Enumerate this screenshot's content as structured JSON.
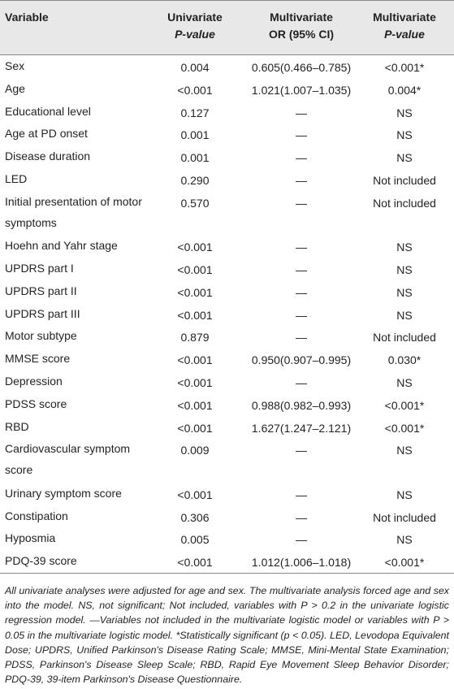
{
  "header": {
    "variable": "Variable",
    "univariate_line1": "Univariate",
    "univariate_line2": "P-value",
    "or_line1": "Multivariate",
    "or_line2": "OR (95% CI)",
    "mp_line1": "Multivariate",
    "mp_line2": "P-value"
  },
  "rows": [
    {
      "variable": "Sex",
      "univariate": "0.004",
      "or": "0.605(0.466–0.785)",
      "mp": "<0.001*"
    },
    {
      "variable": "Age",
      "univariate": "<0.001",
      "or": "1.021(1.007–1.035)",
      "mp": "0.004*"
    },
    {
      "variable": "Educational level",
      "univariate": "0.127",
      "or": "—",
      "mp": "NS"
    },
    {
      "variable": "Age at PD onset",
      "univariate": "0.001",
      "or": "—",
      "mp": "NS"
    },
    {
      "variable": "Disease duration",
      "univariate": "0.001",
      "or": "—",
      "mp": "NS"
    },
    {
      "variable": "LED",
      "univariate": "0.290",
      "or": "—",
      "mp": "Not included"
    },
    {
      "variable": "Initial presentation of motor symptoms",
      "univariate": "0.570",
      "or": "—",
      "mp": "Not included"
    },
    {
      "variable": "Hoehn and Yahr stage",
      "univariate": "<0.001",
      "or": "—",
      "mp": "NS"
    },
    {
      "variable": "UPDRS part I",
      "univariate": "<0.001",
      "or": "—",
      "mp": "NS"
    },
    {
      "variable": "UPDRS part II",
      "univariate": "<0.001",
      "or": "—",
      "mp": "NS"
    },
    {
      "variable": "UPDRS part III",
      "univariate": "<0.001",
      "or": "—",
      "mp": "NS"
    },
    {
      "variable": "Motor subtype",
      "univariate": "0.879",
      "or": "—",
      "mp": "Not included"
    },
    {
      "variable": "MMSE score",
      "univariate": "<0.001",
      "or": "0.950(0.907–0.995)",
      "mp": "0.030*"
    },
    {
      "variable": "Depression",
      "univariate": "<0.001",
      "or": "—",
      "mp": "NS"
    },
    {
      "variable": "PDSS score",
      "univariate": "<0.001",
      "or": "0.988(0.982–0.993)",
      "mp": "<0.001*"
    },
    {
      "variable": "RBD",
      "univariate": "<0.001",
      "or": "1.627(1.247–2.121)",
      "mp": "<0.001*"
    },
    {
      "variable": "Cardiovascular symptom score",
      "univariate": "0.009",
      "or": "—",
      "mp": "NS"
    },
    {
      "variable": "Urinary symptom score",
      "univariate": "<0.001",
      "or": "—",
      "mp": "NS"
    },
    {
      "variable": "Constipation",
      "univariate": "0.306",
      "or": "—",
      "mp": "Not included"
    },
    {
      "variable": "Hyposmia",
      "univariate": "0.005",
      "or": "—",
      "mp": "NS"
    },
    {
      "variable": "PDQ-39 score",
      "univariate": "<0.001",
      "or": "1.012(1.006–1.018)",
      "mp": "<0.001*"
    }
  ],
  "footnote": "All univariate analyses were adjusted for age and sex. The multivariate analysis forced age and sex into the model. NS, not significant; Not included, variables with P > 0.2 in the univariate logistic regression model. —Variables not included in the multivariate logistic model or variables with P > 0.05 in the multivariate logistic model. *Statistically significant (p < 0.05). LED, Levodopa Equivalent Dose; UPDRS, Unified Parkinson's Disease Rating Scale; MMSE, Mini-Mental State Examination; PDSS, Parkinson's Disease Sleep Scale; RBD, Rapid Eye Movement Sleep Behavior Disorder; PDQ-39, 39-item Parkinson's Disease Questionnaire.",
  "tall_rows": [
    6,
    16
  ]
}
